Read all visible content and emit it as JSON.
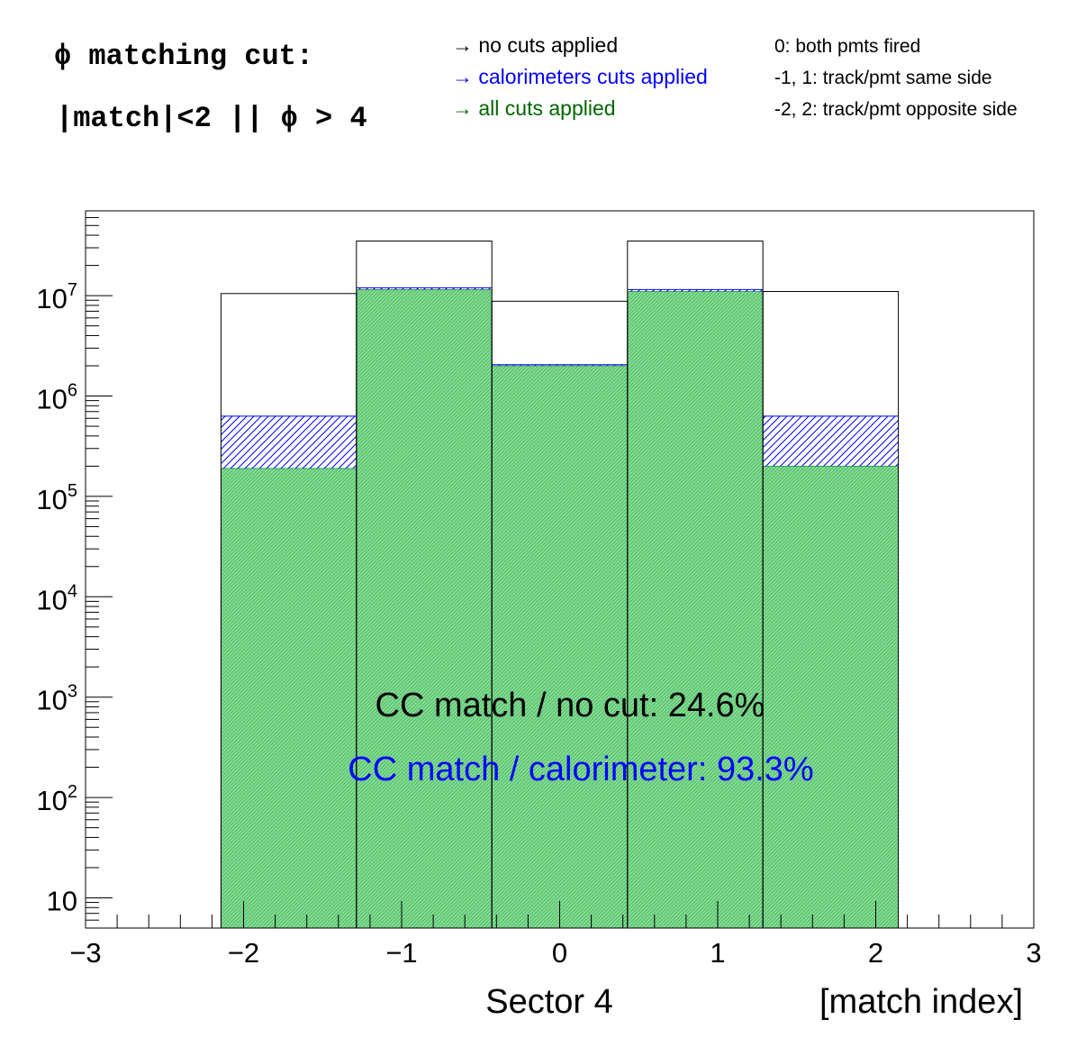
{
  "header": {
    "cut_title": "ϕ matching cut:",
    "cut_expr": "|match|<2 || ϕ > 4",
    "legend": [
      {
        "text": "→ no cuts applied",
        "color": "#000000"
      },
      {
        "text": "→ calorimeters cuts applied",
        "color": "#0000ff"
      },
      {
        "text": "→ all cuts applied",
        "color": "#006600"
      }
    ],
    "notes": [
      "0: both pmts fired",
      "-1, 1: track/pmt same side",
      "-2, 2: track/pmt opposite side"
    ]
  },
  "annotations": {
    "ratio_nocut": "CC match / no cut:  24.6%",
    "ratio_calo": "CC match / calorimeter:  93.3%"
  },
  "chart_data": {
    "type": "bar",
    "xlabel": "[match index]",
    "sector_label": "Sector 4",
    "xlim": [
      -3,
      3
    ],
    "ylim": [
      5,
      70000000
    ],
    "yscale": "log",
    "x_ticks": [
      -3,
      -2,
      -1,
      0,
      1,
      2,
      3
    ],
    "x_tick_labels": [
      "−3",
      "−2",
      "−1",
      "0",
      "1",
      "2",
      "3"
    ],
    "y_tick_labels": [
      {
        "value": 10,
        "base": "10",
        "exp": ""
      },
      {
        "value": 100,
        "base": "10",
        "exp": "2"
      },
      {
        "value": 1000,
        "base": "10",
        "exp": "3"
      },
      {
        "value": 10000,
        "base": "10",
        "exp": "4"
      },
      {
        "value": 100000,
        "base": "10",
        "exp": "5"
      },
      {
        "value": 1000000,
        "base": "10",
        "exp": "6"
      },
      {
        "value": 10000000,
        "base": "10",
        "exp": "7"
      }
    ],
    "bin_edges": [
      -2.143,
      -1.286,
      -0.429,
      0.429,
      1.286,
      2.143
    ],
    "categories": [
      "-2",
      "-1",
      "0",
      "1",
      "2"
    ],
    "series": [
      {
        "name": "no cuts applied",
        "style": "outline",
        "color": "#000000",
        "values": [
          10500000,
          35000000,
          8800000,
          35000000,
          11000000
        ]
      },
      {
        "name": "calorimeters cuts applied",
        "style": "hatch",
        "color": "#0000ff",
        "values": [
          630000,
          12000000,
          2050000,
          11500000,
          630000
        ]
      },
      {
        "name": "all cuts applied",
        "style": "fill",
        "color": "#7fdc8f",
        "values": [
          190000,
          11500000,
          2000000,
          11000000,
          200000
        ]
      }
    ],
    "grid": false
  }
}
